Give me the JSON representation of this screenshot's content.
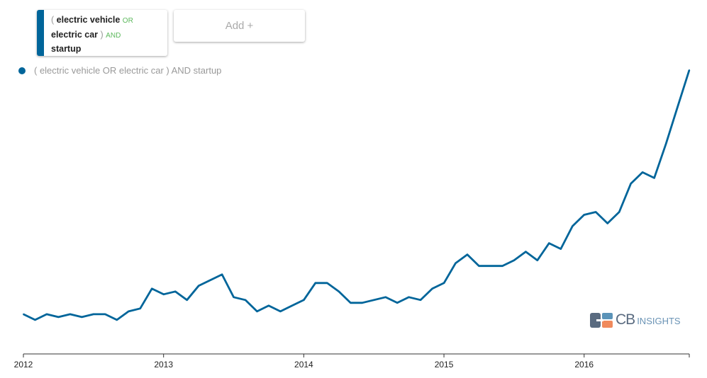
{
  "query": {
    "open": "(",
    "term1": "electric vehicle",
    "op1": "OR",
    "term2": "electric car",
    "close": ")",
    "op2": "AND",
    "term3": "startup"
  },
  "add_button": "Add +",
  "logo": {
    "cb": "CB",
    "insights": "INSIGHTS"
  },
  "colors": {
    "series": "#00659a",
    "or_and": "#5cb85c"
  },
  "chart_data": {
    "type": "line",
    "title": "",
    "xlabel": "",
    "ylabel": "",
    "x_ticks": [
      "2012",
      "2013",
      "2014",
      "2015",
      "2016"
    ],
    "x_start": "2012-01",
    "x_end": "2016-10",
    "x_interval": "month",
    "ylim": [
      0,
      100
    ],
    "legend": "top-left",
    "grid": false,
    "series": [
      {
        "name": "( electric vehicle OR electric car ) AND startup",
        "color": "#00659a",
        "values": [
          14,
          12,
          14,
          13,
          14,
          13,
          14,
          14,
          12,
          15,
          16,
          23,
          21,
          22,
          19,
          24,
          26,
          28,
          20,
          19,
          15,
          17,
          15,
          17,
          19,
          25,
          25,
          22,
          18,
          18,
          19,
          20,
          18,
          20,
          19,
          23,
          25,
          32,
          35,
          31,
          31,
          31,
          33,
          36,
          33,
          39,
          37,
          45,
          49,
          50,
          46,
          50,
          60,
          64,
          62,
          74,
          87,
          100
        ]
      }
    ]
  }
}
